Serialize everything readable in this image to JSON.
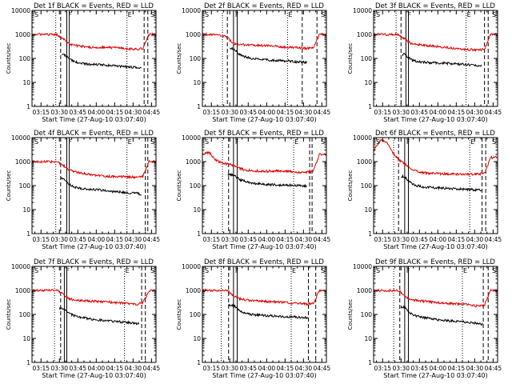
{
  "colors": {
    "events": "#000000",
    "lld": "#e00000",
    "axes": "#000000",
    "background": "#ffffff"
  },
  "chart_data": {
    "type": "line",
    "layout": "3x3 grid of small multiples",
    "y_scale": "log",
    "ylim": [
      1,
      10000
    ],
    "ylabel": "Counts/sec",
    "y_tick_labels": [
      "1",
      "10",
      "100",
      "1000",
      "10000"
    ],
    "x_range": [
      "03:07:40",
      "04:48:40"
    ],
    "x_tick_labels": [
      "03:15",
      "03:30",
      "03:45",
      "04:00",
      "04:15",
      "04:30",
      "04:45"
    ],
    "xlabel": "Start Time (27-Aug-10 03:07:40)",
    "legend_text": "BLACK = Events, RED = LLD",
    "markers": [
      "S",
      "F",
      "E",
      "S"
    ],
    "time_grid": [
      "03:08",
      "03:13",
      "03:18",
      "03:23",
      "03:28",
      "03:33",
      "03:38",
      "03:43",
      "03:48",
      "03:53",
      "03:58",
      "04:03",
      "04:08",
      "04:13",
      "04:18",
      "04:23",
      "04:28",
      "04:33",
      "04:38",
      "04:43"
    ],
    "panels": [
      {
        "title": "Det 1f BLACK = Events, RED = LLD",
        "vlines": {
          "dotted": [
            "03:27",
            "04:25"
          ],
          "dashed": [
            "03:31",
            "04:39",
            "04:42"
          ],
          "solid": [
            "03:36",
            "03:38"
          ]
        },
        "series": [
          {
            "name": "Events",
            "start": "03:32",
            "end": "04:37",
            "values": [
              null,
              null,
              null,
              null,
              null,
              160,
              95,
              72,
              62,
              58,
              57,
              55,
              52,
              50,
              47,
              46,
              44,
              42,
              38,
              null
            ]
          },
          {
            "name": "LLD",
            "values": [
              1000,
              1000,
              1000,
              1000,
              1000,
              650,
              400,
              340,
              320,
              300,
              295,
              290,
              285,
              280,
              270,
              260,
              250,
              240,
              260,
              1000
            ]
          }
        ]
      },
      {
        "title": "Det 2f BLACK = Events, RED = LLD",
        "vlines": {
          "dotted": [
            "03:24",
            "04:17"
          ],
          "dashed": [
            "03:28",
            "04:29",
            "04:41"
          ],
          "solid": [
            "03:33",
            "03:36"
          ]
        },
        "series": [
          {
            "name": "Events",
            "start": "03:30",
            "end": "04:33",
            "values": [
              null,
              null,
              null,
              null,
              null,
              260,
              140,
              115,
              100,
              95,
              90,
              85,
              82,
              80,
              78,
              72,
              70,
              68,
              null,
              null
            ]
          },
          {
            "name": "LLD",
            "values": [
              1000,
              1000,
              1000,
              900,
              750,
              420,
              380,
              370,
              360,
              350,
              340,
              330,
              320,
              300,
              290,
              280,
              270,
              260,
              280,
              1000
            ]
          }
        ]
      },
      {
        "title": "Det 3f BLACK = Events, RED = LLD",
        "vlines": {
          "dotted": [
            "03:26",
            "04:23"
          ],
          "dashed": [
            "03:30",
            "04:38",
            "04:41"
          ],
          "solid": [
            "03:34",
            "03:36"
          ]
        },
        "series": [
          {
            "name": "Events",
            "start": "03:31",
            "end": "04:36",
            "values": [
              null,
              null,
              null,
              null,
              null,
              150,
              90,
              75,
              70,
              68,
              66,
              64,
              62,
              60,
              58,
              55,
              52,
              50,
              45,
              null
            ]
          },
          {
            "name": "LLD",
            "values": [
              1000,
              1000,
              1000,
              1000,
              1000,
              650,
              420,
              380,
              360,
              340,
              320,
              300,
              280,
              260,
              250,
              240,
              230,
              220,
              240,
              1000
            ]
          }
        ]
      },
      {
        "title": "Det 4f BLACK = Events, RED = LLD",
        "vlines": {
          "dotted": [
            "03:27",
            "04:25"
          ],
          "dashed": [
            "03:31",
            "04:40",
            "04:42"
          ],
          "solid": [
            "03:36",
            "03:38"
          ]
        },
        "series": [
          {
            "name": "Events",
            "start": "03:31",
            "end": "04:37",
            "values": [
              null,
              null,
              null,
              null,
              null,
              200,
              110,
              85,
              75,
              70,
              68,
              65,
              62,
              58,
              55,
              52,
              50,
              48,
              42,
              null
            ]
          },
          {
            "name": "LLD",
            "values": [
              1000,
              1000,
              1000,
              1000,
              1000,
              700,
              450,
              380,
              340,
              300,
              280,
              260,
              250,
              245,
              240,
              235,
              230,
              220,
              250,
              1000
            ]
          }
        ]
      },
      {
        "title": "Det 5f BLACK = Events, RED = LLD",
        "vlines": {
          "dotted": [
            "03:24",
            "04:22"
          ],
          "dashed": [
            "03:29",
            "04:35",
            "04:37"
          ],
          "solid": [
            "03:33",
            "03:36"
          ]
        },
        "series": [
          {
            "name": "Events",
            "start": "03:28",
            "end": "04:33",
            "values": [
              null,
              null,
              null,
              null,
              null,
              280,
              180,
              150,
              130,
              120,
              115,
              110,
              108,
              105,
              105,
              100,
              98,
              95,
              null,
              null
            ]
          },
          {
            "name": "LLD",
            "values": [
              2000,
              2500,
              1200,
              900,
              800,
              700,
              520,
              450,
              420,
              400,
              400,
              400,
              410,
              400,
              390,
              380,
              370,
              360,
              400,
              2000
            ]
          }
        ]
      },
      {
        "title": "Det 6f BLACK = Events, RED = LLD",
        "vlines": {
          "dotted": [
            "03:24",
            "04:26"
          ],
          "dashed": [
            "03:28",
            "04:36",
            "04:39"
          ],
          "solid": [
            "03:33",
            "03:36"
          ]
        },
        "series": [
          {
            "name": "Events",
            "start": "03:30",
            "end": "04:36",
            "values": [
              null,
              null,
              null,
              null,
              null,
              240,
              130,
              100,
              90,
              85,
              82,
              80,
              78,
              75,
              72,
              70,
              68,
              65,
              60,
              null
            ]
          },
          {
            "name": "LLD",
            "values": [
              3000,
              8000,
              7000,
              2500,
              1200,
              800,
              500,
              400,
              350,
              330,
              320,
              310,
              310,
              300,
              300,
              300,
              300,
              300,
              320,
              1500
            ]
          }
        ]
      },
      {
        "title": "Det 7f BLACK = Events, RED = LLD",
        "vlines": {
          "dotted": [
            "03:26",
            "04:23"
          ],
          "dashed": [
            "03:31",
            "04:37",
            "04:40"
          ],
          "solid": [
            "03:34",
            "03:36"
          ]
        },
        "series": [
          {
            "name": "Events",
            "start": "03:30",
            "end": "04:35",
            "values": [
              null,
              null,
              null,
              null,
              null,
              180,
              110,
              85,
              75,
              68,
              62,
              58,
              55,
              52,
              50,
              48,
              45,
              42,
              40,
              null
            ]
          },
          {
            "name": "LLD",
            "values": [
              1000,
              1000,
              1000,
              1000,
              1000,
              700,
              450,
              400,
              380,
              360,
              350,
              340,
              330,
              320,
              310,
              300,
              280,
              260,
              300,
              1000
            ]
          }
        ]
      },
      {
        "title": "Det 8f BLACK = Events, RED = LLD",
        "vlines": {
          "dotted": [
            "03:23",
            "04:20"
          ],
          "dashed": [
            "03:29",
            "04:34",
            "04:40"
          ],
          "solid": [
            "03:33",
            "03:36"
          ]
        },
        "series": [
          {
            "name": "Events",
            "start": "03:29",
            "end": "04:34",
            "values": [
              null,
              null,
              null,
              null,
              null,
              240,
              140,
              110,
              100,
              95,
              90,
              88,
              85,
              82,
              80,
              78,
              75,
              72,
              null,
              null
            ]
          },
          {
            "name": "LLD",
            "values": [
              1000,
              1000,
              1000,
              1000,
              1000,
              600,
              450,
              400,
              380,
              360,
              350,
              340,
              330,
              320,
              300,
              290,
              280,
              270,
              300,
              1000
            ]
          }
        ]
      },
      {
        "title": "Det 9f BLACK = Events, RED = LLD",
        "vlines": {
          "dotted": [
            "03:24",
            "04:20"
          ],
          "dashed": [
            "03:29",
            "04:37",
            "04:41"
          ],
          "solid": [
            "03:33",
            "03:36"
          ]
        },
        "series": [
          {
            "name": "Events",
            "start": "03:30",
            "end": "04:37",
            "values": [
              null,
              null,
              null,
              null,
              null,
              200,
              110,
              85,
              75,
              68,
              62,
              58,
              55,
              52,
              50,
              48,
              45,
              42,
              38,
              null
            ]
          },
          {
            "name": "LLD",
            "values": [
              1000,
              1000,
              1000,
              1000,
              1000,
              600,
              420,
              380,
              360,
              340,
              320,
              300,
              290,
              280,
              270,
              260,
              240,
              220,
              240,
              1000
            ]
          }
        ]
      }
    ]
  }
}
